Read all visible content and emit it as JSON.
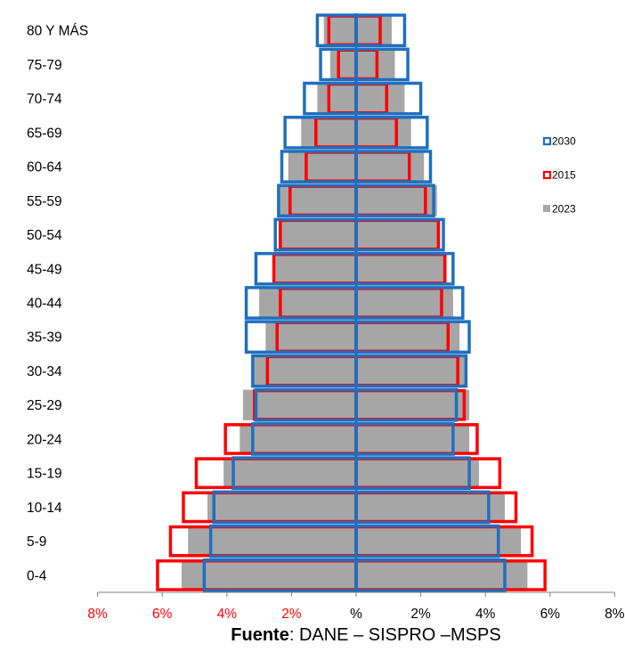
{
  "chart_data": {
    "type": "bar",
    "subtype": "population-pyramid",
    "orientation": "horizontal",
    "categories": [
      "0-4",
      "5-9",
      "10-14",
      "15-19",
      "20-24",
      "25-29",
      "30-34",
      "35-39",
      "40-44",
      "45-49",
      "50-54",
      "55-59",
      "60-64",
      "65-69",
      "70-74",
      "75-79",
      "80 Y MÁS"
    ],
    "series": [
      {
        "name": "2030",
        "style": "outline",
        "color": "#1F6FBF",
        "left": [
          4.7,
          4.5,
          4.4,
          3.8,
          3.2,
          3.1,
          3.2,
          3.4,
          3.4,
          3.1,
          2.5,
          2.4,
          2.3,
          2.2,
          1.6,
          1.1,
          1.2
        ],
        "right": [
          4.6,
          4.4,
          4.1,
          3.5,
          3.0,
          3.1,
          3.4,
          3.5,
          3.3,
          3.0,
          2.7,
          2.4,
          2.3,
          2.2,
          2.0,
          1.6,
          1.5
        ]
      },
      {
        "name": "2015",
        "style": "outline",
        "color": "#FF0000",
        "left": [
          6.2,
          5.8,
          5.4,
          5.0,
          4.1,
          3.2,
          2.8,
          2.5,
          2.4,
          2.6,
          2.4,
          2.1,
          1.6,
          1.3,
          0.9,
          0.6,
          0.9
        ],
        "right": [
          5.9,
          5.5,
          5.0,
          4.5,
          3.8,
          3.4,
          3.2,
          2.9,
          2.7,
          2.8,
          2.6,
          2.2,
          1.7,
          1.3,
          1.0,
          0.7,
          0.8
        ]
      },
      {
        "name": "2023",
        "style": "filled",
        "color": "#A6A6A6",
        "left": [
          5.4,
          5.2,
          4.6,
          4.1,
          3.6,
          3.5,
          3.2,
          2.8,
          3.0,
          2.5,
          2.4,
          2.4,
          2.1,
          1.7,
          1.2,
          0.8,
          1.0
        ],
        "right": [
          5.3,
          5.1,
          4.6,
          3.8,
          3.5,
          3.5,
          3.4,
          3.2,
          3.0,
          2.8,
          2.6,
          2.5,
          2.1,
          1.7,
          1.5,
          1.2,
          1.1
        ]
      }
    ],
    "x_tick_labels": [
      "8%",
      "6%",
      "4%",
      "2%",
      "%",
      "2%",
      "4%",
      "6%",
      "8%"
    ],
    "x_tick_colors": [
      "#FF0000",
      "#FF0000",
      "#FF0000",
      "#FF0000",
      "#000000",
      "#000000",
      "#000000",
      "#000000",
      "#000000"
    ],
    "xlim": [
      -8,
      8
    ],
    "legend_position": "right",
    "legend": [
      {
        "label": "2030",
        "style": "outline",
        "color": "#1F6FBF"
      },
      {
        "label": "2015",
        "style": "outline",
        "color": "#FF0000"
      },
      {
        "label": "2023",
        "style": "filled",
        "color": "#A6A6A6"
      }
    ],
    "grid": false,
    "source_bold": "Fuente",
    "source_text": ": DANE – SISPRO –MSPS"
  }
}
